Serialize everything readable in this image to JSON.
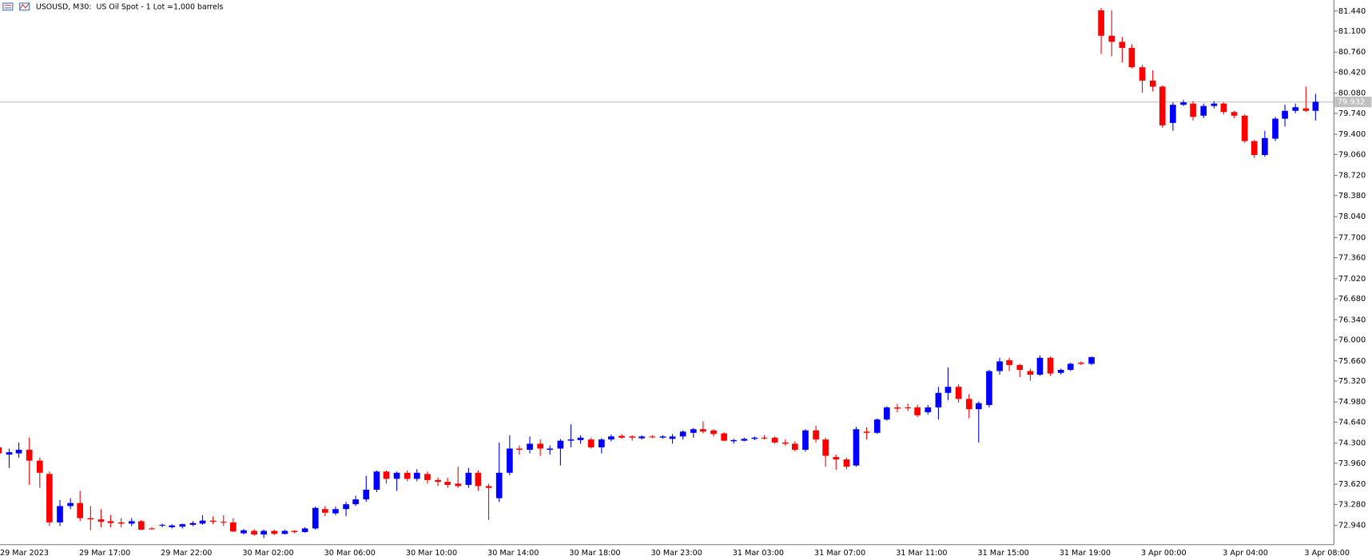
{
  "chart_data": {
    "type": "candlestick",
    "title": "USOUSD, M30:  US Oil Spot - 1 Lot =1,000 barrels",
    "categories": [
      "29 Mar 2023",
      null,
      null,
      null,
      null,
      null,
      null,
      null,
      "29 Mar 17:00",
      null,
      null,
      null,
      null,
      null,
      null,
      null,
      "29 Mar 22:00",
      null,
      null,
      null,
      null,
      null,
      null,
      null,
      "30 Mar 02:00",
      null,
      null,
      null,
      null,
      null,
      null,
      null,
      "30 Mar 06:00",
      null,
      null,
      null,
      null,
      null,
      null,
      null,
      "30 Mar 10:00",
      null,
      null,
      null,
      null,
      null,
      null,
      null,
      "30 Mar 14:00",
      null,
      null,
      null,
      null,
      null,
      null,
      null,
      "30 Mar 18:00",
      null,
      null,
      null,
      null,
      null,
      null,
      null,
      "30 Mar 23:00",
      null,
      null,
      null,
      null,
      null,
      null,
      null,
      "31 Mar 03:00",
      null,
      null,
      null,
      null,
      null,
      null,
      null,
      "31 Mar 07:00",
      null,
      null,
      null,
      null,
      null,
      null,
      null,
      "31 Mar 11:00",
      null,
      null,
      null,
      null,
      null,
      null,
      null,
      "31 Mar 15:00",
      null,
      null,
      null,
      null,
      null,
      null,
      null,
      "31 Mar 19:00",
      null,
      null,
      null,
      null,
      null,
      null,
      null,
      "3 Apr 00:00",
      null,
      null,
      null,
      null,
      null,
      null,
      null,
      "3 Apr 04:00",
      null,
      null,
      null,
      null,
      null,
      null,
      null,
      "3 Apr 08:00",
      null
    ],
    "open": [
      74.22,
      74.1,
      74.12,
      74.18,
      74.0,
      73.78,
      72.98,
      73.25,
      73.3,
      73.05,
      73.03,
      73.0,
      72.98,
      72.96,
      73.0,
      72.88,
      72.93,
      72.9,
      72.91,
      72.94,
      72.96,
      73.01,
      72.99,
      72.98,
      72.8,
      72.84,
      72.78,
      72.84,
      72.79,
      72.84,
      72.82,
      72.88,
      73.2,
      73.13,
      73.2,
      73.28,
      73.36,
      73.52,
      73.82,
      73.7,
      73.8,
      73.7,
      73.78,
      73.68,
      73.65,
      73.62,
      73.6,
      73.8,
      73.58,
      73.38,
      73.8,
      74.2,
      74.18,
      74.28,
      74.18,
      74.2,
      74.33,
      74.34,
      74.35,
      74.22,
      74.35,
      74.41,
      74.4,
      74.37,
      74.4,
      74.38,
      74.36,
      74.4,
      74.46,
      74.52,
      74.5,
      74.45,
      74.32,
      74.33,
      74.36,
      74.38,
      74.38,
      74.3,
      74.28,
      74.18,
      74.5,
      74.35,
      74.06,
      74.02,
      73.92,
      74.48,
      74.46,
      74.68,
      74.88,
      74.88,
      74.88,
      74.8,
      74.88,
      75.12,
      75.22,
      75.02,
      74.85,
      74.92,
      75.48,
      75.66,
      75.58,
      75.48,
      75.42,
      75.7,
      75.45,
      75.5,
      75.62,
      75.6,
      81.44,
      81.02,
      80.92,
      80.82,
      80.5,
      80.28,
      80.18,
      79.58,
      79.88,
      79.9,
      79.7,
      79.86,
      79.9,
      79.76,
      79.7,
      79.28,
      79.05,
      79.32,
      79.65,
      79.78,
      79.82,
      79.78
    ],
    "high": [
      74.25,
      74.2,
      74.3,
      74.38,
      74.05,
      73.82,
      73.35,
      73.38,
      73.5,
      73.25,
      73.2,
      73.1,
      73.05,
      73.05,
      73.02,
      72.9,
      72.96,
      72.95,
      72.96,
      73.0,
      73.1,
      73.08,
      73.1,
      73.05,
      72.87,
      72.87,
      72.86,
      72.86,
      72.86,
      72.85,
      72.9,
      73.24,
      73.25,
      73.24,
      73.32,
      73.42,
      73.75,
      73.84,
      73.84,
      73.82,
      73.84,
      73.86,
      73.82,
      73.72,
      73.72,
      73.9,
      73.88,
      73.84,
      73.62,
      74.3,
      74.42,
      74.25,
      74.4,
      74.35,
      74.25,
      74.36,
      74.6,
      74.42,
      74.38,
      74.37,
      74.43,
      74.44,
      74.42,
      74.42,
      74.42,
      74.42,
      74.44,
      74.5,
      74.54,
      74.65,
      74.52,
      74.47,
      74.36,
      74.38,
      74.4,
      74.42,
      74.4,
      74.35,
      74.32,
      74.52,
      74.58,
      74.38,
      74.1,
      74.05,
      74.56,
      74.55,
      74.7,
      74.9,
      74.94,
      74.94,
      74.92,
      74.92,
      75.22,
      75.54,
      75.26,
      75.1,
      74.98,
      75.5,
      75.7,
      75.7,
      75.6,
      75.52,
      75.74,
      75.72,
      75.52,
      75.62,
      75.64,
      75.72,
      81.48,
      81.44,
      81.0,
      80.88,
      80.54,
      80.45,
      80.2,
      79.92,
      79.96,
      79.94,
      79.9,
      79.94,
      79.92,
      79.78,
      79.72,
      79.3,
      79.45,
      79.68,
      79.88,
      79.9,
      80.18,
      80.06
    ],
    "low": [
      74.05,
      73.88,
      74.05,
      73.6,
      73.55,
      72.92,
      72.92,
      73.2,
      73.0,
      72.85,
      72.9,
      72.9,
      72.9,
      72.92,
      72.85,
      72.86,
      72.9,
      72.88,
      72.88,
      72.92,
      72.94,
      72.95,
      72.92,
      72.82,
      72.78,
      72.76,
      72.72,
      72.77,
      72.78,
      72.8,
      72.81,
      72.86,
      73.08,
      73.1,
      73.08,
      73.25,
      73.32,
      73.48,
      73.62,
      73.5,
      73.66,
      73.66,
      73.62,
      73.58,
      73.55,
      73.55,
      73.55,
      73.5,
      73.02,
      73.32,
      73.76,
      74.1,
      74.12,
      74.08,
      74.1,
      73.92,
      74.22,
      74.28,
      74.2,
      74.12,
      74.32,
      74.36,
      74.33,
      74.35,
      74.37,
      74.36,
      74.28,
      74.35,
      74.38,
      74.45,
      74.4,
      74.32,
      74.28,
      74.32,
      74.34,
      74.35,
      74.28,
      74.25,
      74.15,
      74.15,
      74.3,
      73.9,
      73.85,
      73.86,
      73.9,
      74.35,
      74.44,
      74.66,
      74.8,
      74.82,
      74.72,
      74.76,
      74.68,
      75.0,
      74.96,
      74.7,
      74.3,
      74.88,
      75.42,
      75.48,
      75.38,
      75.32,
      75.4,
      75.4,
      75.42,
      75.48,
      75.58,
      75.58,
      80.72,
      80.68,
      80.58,
      80.48,
      80.08,
      80.1,
      79.5,
      79.45,
      79.86,
      79.62,
      79.66,
      79.82,
      79.72,
      79.66,
      79.25,
      79.0,
      79.02,
      79.28,
      79.52,
      79.74,
      79.76,
      79.62
    ],
    "close": [
      74.12,
      74.14,
      74.18,
      74.0,
      73.8,
      72.98,
      73.25,
      73.3,
      73.05,
      73.03,
      72.99,
      72.97,
      72.96,
      73.0,
      72.86,
      72.87,
      72.94,
      72.93,
      72.95,
      72.97,
      73.01,
      72.99,
      72.98,
      72.83,
      72.85,
      72.78,
      72.84,
      72.79,
      72.84,
      72.82,
      72.88,
      73.22,
      73.14,
      73.2,
      73.28,
      73.36,
      73.52,
      73.82,
      73.7,
      73.8,
      73.7,
      73.8,
      73.68,
      73.65,
      73.6,
      73.58,
      73.8,
      73.58,
      73.55,
      73.8,
      74.2,
      74.18,
      74.28,
      74.2,
      74.2,
      74.33,
      74.35,
      74.38,
      74.22,
      74.35,
      74.4,
      74.38,
      74.38,
      74.4,
      74.39,
      74.4,
      74.4,
      74.48,
      74.52,
      74.48,
      74.44,
      74.33,
      74.34,
      74.36,
      74.38,
      74.37,
      74.3,
      74.28,
      74.18,
      74.5,
      74.35,
      74.08,
      74.02,
      73.9,
      74.52,
      74.46,
      74.68,
      74.88,
      74.86,
      74.87,
      74.75,
      74.88,
      75.12,
      75.22,
      75.02,
      74.85,
      74.95,
      75.48,
      75.64,
      75.58,
      75.5,
      75.42,
      75.7,
      75.44,
      75.5,
      75.6,
      75.6,
      75.71,
      81.02,
      80.92,
      80.82,
      80.5,
      80.28,
      80.18,
      79.54,
      79.88,
      79.92,
      79.68,
      79.86,
      79.9,
      79.76,
      79.7,
      79.28,
      79.05,
      79.33,
      79.65,
      79.78,
      79.84,
      79.78,
      79.93
    ],
    "up_color": "#0000ff",
    "down_color": "#ff0000",
    "last_price": 79.932,
    "ylim": [
      72.62,
      81.61
    ],
    "yticks": [
      {
        "value": 81.44,
        "label": "81.440"
      },
      {
        "value": 81.1,
        "label": "81.100"
      },
      {
        "value": 80.76,
        "label": "80.760"
      },
      {
        "value": 80.42,
        "label": "80.420"
      },
      {
        "value": 80.08,
        "label": "80.080"
      },
      {
        "value": 79.74,
        "label": "79.740"
      },
      {
        "value": 79.4,
        "label": "79.400"
      },
      {
        "value": 79.06,
        "label": "79.060"
      },
      {
        "value": 78.72,
        "label": "78.720"
      },
      {
        "value": 78.38,
        "label": "78.380"
      },
      {
        "value": 78.04,
        "label": "78.040"
      },
      {
        "value": 77.7,
        "label": "77.700"
      },
      {
        "value": 77.36,
        "label": "77.360"
      },
      {
        "value": 77.02,
        "label": "77.020"
      },
      {
        "value": 76.68,
        "label": "76.680"
      },
      {
        "value": 76.34,
        "label": "76.340"
      },
      {
        "value": 76.0,
        "label": "76.000"
      },
      {
        "value": 75.66,
        "label": "75.660"
      },
      {
        "value": 75.32,
        "label": "75.320"
      },
      {
        "value": 74.98,
        "label": "74.980"
      },
      {
        "value": 74.64,
        "label": "74.640"
      },
      {
        "value": 74.3,
        "label": "74.300"
      },
      {
        "value": 73.96,
        "label": "73.960"
      },
      {
        "value": 73.62,
        "label": "73.620"
      },
      {
        "value": 73.28,
        "label": "73.280"
      },
      {
        "value": 72.94,
        "label": "72.940"
      }
    ],
    "grid": false
  }
}
